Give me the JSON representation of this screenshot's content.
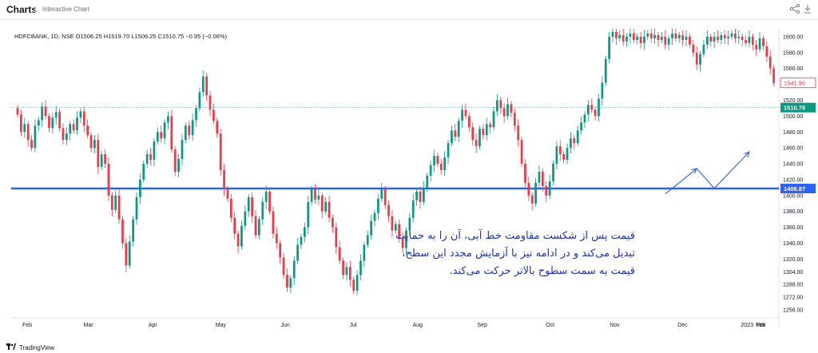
{
  "app": {
    "title": "Charts",
    "tab": "Interactive Chart"
  },
  "icons": {
    "share": "share-icon",
    "download": "download-icon",
    "logo": "tradingview-logo-icon"
  },
  "footer": {
    "brand": "TradingView"
  },
  "chart_data": {
    "type": "candlestick",
    "symbol_header": "HDFCBANK, 1D, NSE  O1506.25  H1519.70  L1506.25  C1510.75  −0.95 (−0.06%)",
    "ohlc": {
      "symbol": "HDFCBANK, 1D, NSE",
      "open": 1506.25,
      "high": 1519.7,
      "low": 1506.25,
      "close": 1510.75,
      "change": -0.95,
      "change_pct": -0.06
    },
    "y_ticks": [
      1600,
      1580,
      1560,
      1520,
      1500,
      1480,
      1460,
      1440,
      1420,
      1400,
      1380,
      1360,
      1340,
      1320,
      1304,
      1288,
      1272,
      1256
    ],
    "ylim": [
      1246,
      1610
    ],
    "x_ticks": [
      "Feb",
      "Mar",
      "Apr",
      "May",
      "Jun",
      "Jul",
      "Aug",
      "Sep",
      "Oct",
      "Nov",
      "Dec",
      "2023",
      "Feb",
      "Mar"
    ],
    "price_labels": [
      {
        "value": 1541.9,
        "text": "1541.90",
        "color": "#f23645",
        "style": "outline"
      },
      {
        "value": 1510.75,
        "text": "1510.75",
        "color": "#089981",
        "style": "fill"
      },
      {
        "value": 1408.87,
        "text": "1408.87",
        "color": "#2962ff",
        "style": "fill"
      }
    ],
    "support_level": {
      "value": 1408.87,
      "color": "#2962ff"
    },
    "last_price_line": {
      "value": 1510.75,
      "color": "#089981"
    },
    "arrow_points": [
      [
        185,
        1402
      ],
      [
        194,
        1434
      ],
      [
        199,
        1409
      ],
      [
        209,
        1455
      ]
    ],
    "up_color": "#089981",
    "down_color": "#f23645",
    "candles": [
      [
        1510,
        1502
      ],
      [
        1502,
        1480
      ],
      [
        1480,
        1490
      ],
      [
        1490,
        1470
      ],
      [
        1470,
        1460
      ],
      [
        1460,
        1488
      ],
      [
        1488,
        1495
      ],
      [
        1495,
        1512
      ],
      [
        1512,
        1500
      ],
      [
        1500,
        1485
      ],
      [
        1485,
        1498
      ],
      [
        1498,
        1505
      ],
      [
        1505,
        1485
      ],
      [
        1485,
        1470
      ],
      [
        1470,
        1478
      ],
      [
        1478,
        1490
      ],
      [
        1490,
        1482
      ],
      [
        1482,
        1498
      ],
      [
        1498,
        1506
      ],
      [
        1506,
        1488
      ],
      [
        1488,
        1476
      ],
      [
        1476,
        1460
      ],
      [
        1460,
        1470
      ],
      [
        1470,
        1436
      ],
      [
        1436,
        1452
      ],
      [
        1452,
        1440
      ],
      [
        1440,
        1400
      ],
      [
        1400,
        1382
      ],
      [
        1382,
        1400
      ],
      [
        1400,
        1370
      ],
      [
        1370,
        1340
      ],
      [
        1340,
        1312
      ],
      [
        1312,
        1342
      ],
      [
        1342,
        1370
      ],
      [
        1370,
        1398
      ],
      [
        1398,
        1420
      ],
      [
        1420,
        1440
      ],
      [
        1440,
        1452
      ],
      [
        1452,
        1445
      ],
      [
        1445,
        1468
      ],
      [
        1468,
        1480
      ],
      [
        1480,
        1472
      ],
      [
        1472,
        1492
      ],
      [
        1492,
        1500
      ],
      [
        1500,
        1458
      ],
      [
        1458,
        1430
      ],
      [
        1430,
        1446
      ],
      [
        1446,
        1470
      ],
      [
        1470,
        1488
      ],
      [
        1488,
        1476
      ],
      [
        1476,
        1495
      ],
      [
        1495,
        1510
      ],
      [
        1510,
        1530
      ],
      [
        1530,
        1550
      ],
      [
        1550,
        1526
      ],
      [
        1526,
        1508
      ],
      [
        1508,
        1494
      ],
      [
        1494,
        1478
      ],
      [
        1478,
        1432
      ],
      [
        1432,
        1408
      ],
      [
        1408,
        1396
      ],
      [
        1396,
        1372
      ],
      [
        1372,
        1352
      ],
      [
        1352,
        1336
      ],
      [
        1336,
        1362
      ],
      [
        1362,
        1380
      ],
      [
        1380,
        1398
      ],
      [
        1398,
        1374
      ],
      [
        1374,
        1350
      ],
      [
        1350,
        1370
      ],
      [
        1370,
        1392
      ],
      [
        1392,
        1405
      ],
      [
        1405,
        1380
      ],
      [
        1380,
        1352
      ],
      [
        1352,
        1340
      ],
      [
        1340,
        1322
      ],
      [
        1322,
        1300
      ],
      [
        1300,
        1284
      ],
      [
        1284,
        1296
      ],
      [
        1296,
        1318
      ],
      [
        1318,
        1338
      ],
      [
        1338,
        1348
      ],
      [
        1348,
        1360
      ],
      [
        1360,
        1392
      ],
      [
        1392,
        1408
      ],
      [
        1408,
        1395
      ],
      [
        1395,
        1400
      ],
      [
        1400,
        1380
      ],
      [
        1380,
        1392
      ],
      [
        1392,
        1372
      ],
      [
        1372,
        1360
      ],
      [
        1360,
        1335
      ],
      [
        1335,
        1318
      ],
      [
        1318,
        1300
      ],
      [
        1300,
        1310
      ],
      [
        1310,
        1294
      ],
      [
        1294,
        1280
      ],
      [
        1280,
        1300
      ],
      [
        1300,
        1318
      ],
      [
        1318,
        1338
      ],
      [
        1338,
        1350
      ],
      [
        1350,
        1368
      ],
      [
        1368,
        1378
      ],
      [
        1378,
        1396
      ],
      [
        1396,
        1408
      ],
      [
        1408,
        1388
      ],
      [
        1388,
        1374
      ],
      [
        1374,
        1356
      ],
      [
        1356,
        1364
      ],
      [
        1364,
        1346
      ],
      [
        1346,
        1334
      ],
      [
        1334,
        1356
      ],
      [
        1356,
        1372
      ],
      [
        1372,
        1394
      ],
      [
        1394,
        1405
      ],
      [
        1405,
        1392
      ],
      [
        1392,
        1410
      ],
      [
        1410,
        1425
      ],
      [
        1425,
        1438
      ],
      [
        1438,
        1450
      ],
      [
        1450,
        1440
      ],
      [
        1440,
        1432
      ],
      [
        1432,
        1448
      ],
      [
        1448,
        1466
      ],
      [
        1466,
        1482
      ],
      [
        1482,
        1474
      ],
      [
        1474,
        1494
      ],
      [
        1494,
        1508
      ],
      [
        1508,
        1500
      ],
      [
        1500,
        1486
      ],
      [
        1486,
        1470
      ],
      [
        1470,
        1462
      ],
      [
        1462,
        1484
      ],
      [
        1484,
        1476
      ],
      [
        1476,
        1490
      ],
      [
        1490,
        1486
      ],
      [
        1486,
        1506
      ],
      [
        1506,
        1520
      ],
      [
        1520,
        1510
      ],
      [
        1510,
        1500
      ],
      [
        1500,
        1515
      ],
      [
        1515,
        1504
      ],
      [
        1504,
        1488
      ],
      [
        1488,
        1470
      ],
      [
        1470,
        1440
      ],
      [
        1440,
        1416
      ],
      [
        1416,
        1400
      ],
      [
        1400,
        1390
      ],
      [
        1390,
        1416
      ],
      [
        1416,
        1430
      ],
      [
        1430,
        1412
      ],
      [
        1412,
        1400
      ],
      [
        1400,
        1418
      ],
      [
        1418,
        1440
      ],
      [
        1440,
        1462
      ],
      [
        1462,
        1452
      ],
      [
        1452,
        1445
      ],
      [
        1445,
        1460
      ],
      [
        1460,
        1472
      ],
      [
        1472,
        1466
      ],
      [
        1466,
        1482
      ],
      [
        1482,
        1492
      ],
      [
        1492,
        1502
      ],
      [
        1502,
        1514
      ],
      [
        1514,
        1508
      ],
      [
        1508,
        1500
      ],
      [
        1500,
        1522
      ],
      [
        1522,
        1542
      ],
      [
        1542,
        1572
      ],
      [
        1572,
        1600
      ],
      [
        1600,
        1606
      ],
      [
        1606,
        1598
      ],
      [
        1598,
        1602
      ],
      [
        1602,
        1594
      ],
      [
        1594,
        1600
      ],
      [
        1600,
        1604
      ],
      [
        1604,
        1596
      ],
      [
        1596,
        1600
      ],
      [
        1600,
        1592
      ],
      [
        1592,
        1600
      ],
      [
        1600,
        1604
      ],
      [
        1604,
        1598
      ],
      [
        1598,
        1602
      ],
      [
        1602,
        1596
      ],
      [
        1596,
        1600
      ],
      [
        1600,
        1590
      ],
      [
        1590,
        1598
      ],
      [
        1598,
        1604
      ],
      [
        1604,
        1598
      ],
      [
        1598,
        1602
      ],
      [
        1602,
        1596
      ],
      [
        1596,
        1600
      ],
      [
        1600,
        1590
      ],
      [
        1590,
        1580
      ],
      [
        1580,
        1565
      ],
      [
        1565,
        1578
      ],
      [
        1578,
        1590
      ],
      [
        1590,
        1600
      ],
      [
        1600,
        1594
      ],
      [
        1594,
        1600
      ],
      [
        1600,
        1596
      ],
      [
        1596,
        1602
      ],
      [
        1602,
        1598
      ],
      [
        1598,
        1600
      ],
      [
        1600,
        1604
      ],
      [
        1604,
        1598
      ],
      [
        1598,
        1600
      ],
      [
        1600,
        1596
      ],
      [
        1596,
        1592
      ],
      [
        1592,
        1600
      ],
      [
        1600,
        1590
      ],
      [
        1590,
        1584
      ],
      [
        1584,
        1598
      ],
      [
        1598,
        1588
      ],
      [
        1588,
        1575
      ],
      [
        1575,
        1560
      ],
      [
        1560,
        1541.9
      ]
    ]
  },
  "annotation": {
    "lines": [
      "قیمت پس از شکست مقاومت خط آبی، آن را به حمایت",
      "تبدیل می‌کند و در ادامه نیز با آزمایش مجدد این سطح،",
      "قیمت به سمت سطوح بالاتر حرکت می‌کند."
    ]
  }
}
